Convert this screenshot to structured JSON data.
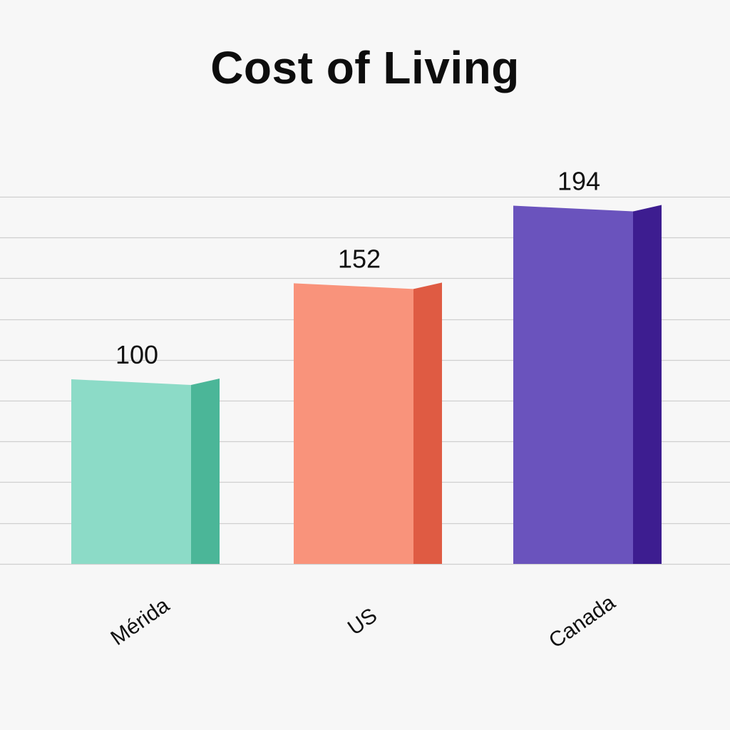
{
  "chart_data": {
    "type": "bar",
    "title": "Cost of Living",
    "categories": [
      "Mérida",
      "US",
      "Canada"
    ],
    "values": [
      100,
      152,
      194
    ],
    "colors": [
      {
        "front": "#8cdbc7",
        "side": "#4bb698"
      },
      {
        "front": "#f9937b",
        "side": "#df5b43"
      },
      {
        "front": "#6a53bd",
        "side": "#3d1d90"
      }
    ],
    "ylim": [
      0,
      220
    ],
    "grid": true,
    "legend": "none",
    "xlabel": "",
    "ylabel": ""
  }
}
